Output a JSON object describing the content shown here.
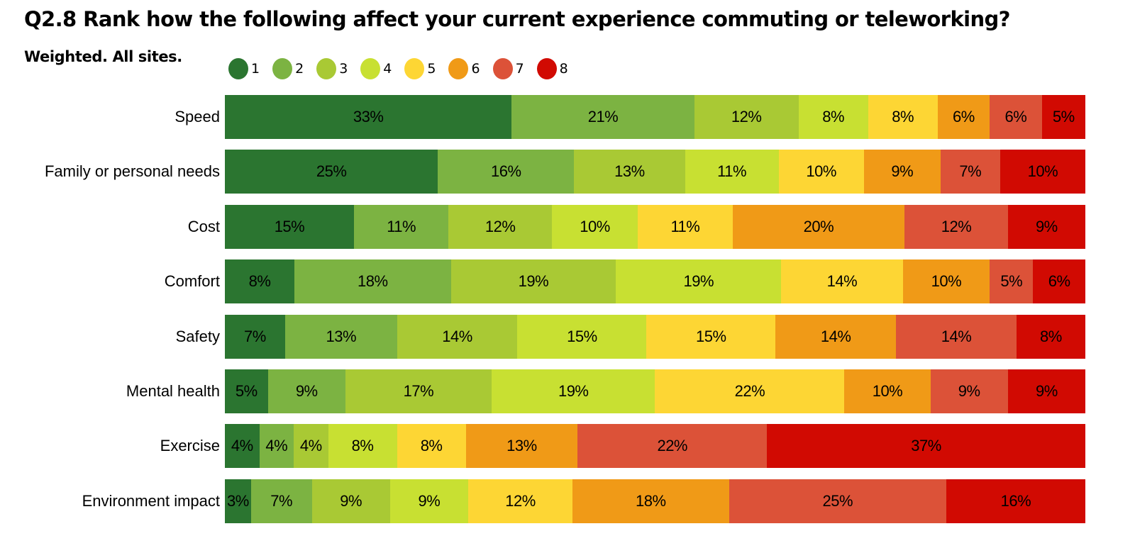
{
  "title": "Q2.8 Rank how the following affect your current experience commuting or teleworking?",
  "subtitle": "Weighted. All sites.",
  "legend": [
    {
      "label": "1",
      "color": "#2b7530"
    },
    {
      "label": "2",
      "color": "#7cb342"
    },
    {
      "label": "3",
      "color": "#a9c934"
    },
    {
      "label": "4",
      "color": "#c8e032"
    },
    {
      "label": "5",
      "color": "#fdd634"
    },
    {
      "label": "6",
      "color": "#f09a17"
    },
    {
      "label": "7",
      "color": "#dc5238"
    },
    {
      "label": "8",
      "color": "#d10a02"
    }
  ],
  "chart_data": {
    "type": "bar",
    "orientation": "horizontal",
    "stacked": "100%",
    "title": "Q2.8 Rank how the following affect your current experience commuting or teleworking?",
    "subtitle": "Weighted. All sites.",
    "xlabel": "",
    "ylabel": "",
    "legend_position": "top",
    "grid": false,
    "categories": [
      "Speed",
      "Family or personal needs",
      "Cost",
      "Comfort",
      "Safety",
      "Mental health",
      "Exercise",
      "Environment impact"
    ],
    "series": [
      {
        "name": "1",
        "color": "#2b7530",
        "values": [
          33,
          25,
          15,
          8,
          7,
          5,
          4,
          3
        ]
      },
      {
        "name": "2",
        "color": "#7cb342",
        "values": [
          21,
          16,
          11,
          18,
          13,
          9,
          4,
          7
        ]
      },
      {
        "name": "3",
        "color": "#a9c934",
        "values": [
          12,
          13,
          12,
          19,
          14,
          17,
          4,
          9
        ]
      },
      {
        "name": "4",
        "color": "#c8e032",
        "values": [
          8,
          11,
          10,
          19,
          15,
          19,
          8,
          9
        ]
      },
      {
        "name": "5",
        "color": "#fdd634",
        "values": [
          8,
          10,
          11,
          14,
          15,
          22,
          8,
          12
        ]
      },
      {
        "name": "6",
        "color": "#f09a17",
        "values": [
          6,
          9,
          20,
          10,
          14,
          10,
          13,
          18
        ]
      },
      {
        "name": "7",
        "color": "#dc5238",
        "values": [
          6,
          7,
          12,
          5,
          14,
          9,
          22,
          25
        ]
      },
      {
        "name": "8",
        "color": "#d10a02",
        "values": [
          5,
          10,
          9,
          6,
          8,
          9,
          37,
          16
        ]
      }
    ],
    "value_suffix": "%",
    "xlim": [
      0,
      100
    ]
  }
}
